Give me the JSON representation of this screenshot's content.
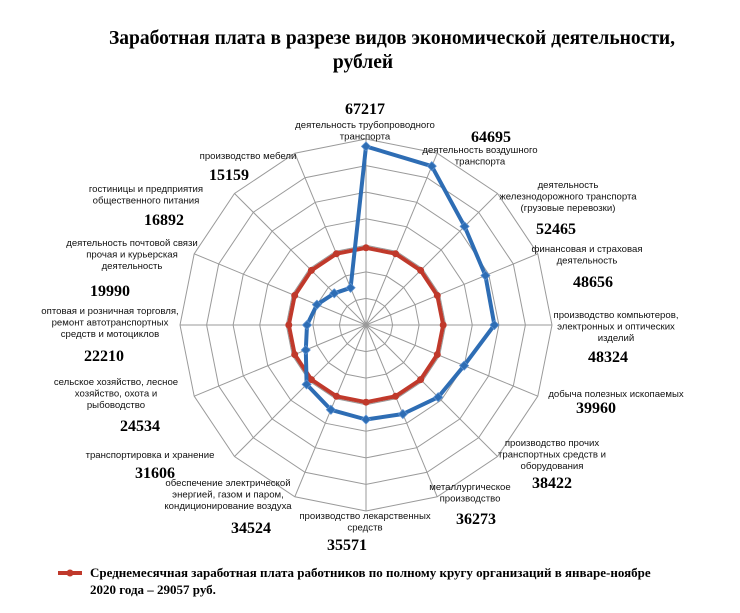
{
  "chart_data": {
    "type": "radar",
    "title": [
      "Заработная плата в разрезе видов экономической деятельности,",
      "рублей"
    ],
    "categories": [
      "деятельность трубопроводного транспорта",
      "деятельность воздушного транспорта",
      "деятельность железнодорожного транспорта (грузовые перевозки)",
      "финансовая и страховая деятельность",
      "производство компьютеров, электронных и оптических изделий",
      "добыча полезных ископаемых",
      "производство прочих транспортных средств и оборудования",
      "металлургическое производство",
      "производство лекарственных средств",
      "обеспечение электрической энергией, газом и паром, кондиционирование воздуха",
      "транспортировка и хранение",
      "сельское хозяйство, лесное хозяйство, охота и рыбоводство",
      "оптовая и розничная торговля, ремонт автотранспортных средств и мотоциклов",
      "деятельность почтовой связи прочая и курьерская деятельность",
      "гостиницы и предприятия общественного питания",
      "производство мебели"
    ],
    "category_lines": [
      [
        "деятельность трубопроводного",
        "транспорта"
      ],
      [
        "деятельность воздушного",
        "транспорта"
      ],
      [
        "деятельность",
        "железнодорожного транспорта",
        "(грузовые перевозки)"
      ],
      [
        "финансовая и страховая",
        "деятельность"
      ],
      [
        "производство компьютеров,",
        "электронных и оптических",
        "изделий"
      ],
      [
        "добыча полезных ископаемых"
      ],
      [
        "производство прочих",
        "транспортных средств и",
        "оборудования"
      ],
      [
        "металлургическое",
        "производство"
      ],
      [
        "производство лекарственных",
        "средств"
      ],
      [
        "обеспечение электрической",
        "энергией, газом и паром,",
        "кондиционирование воздуха"
      ],
      [
        "транспортировка и хранение"
      ],
      [
        "сельское хозяйство, лесное",
        "хозяйство, охота и",
        "рыбоводство"
      ],
      [
        "оптовая и розничная торговля,",
        "ремонт автотранспортных",
        "средств и мотоциклов"
      ],
      [
        "деятельность почтовой связи",
        "прочая и курьерская",
        "деятельность"
      ],
      [
        "гостиницы и предприятия",
        "общественного питания"
      ],
      [
        "производство мебели"
      ]
    ],
    "value_labels": [
      "67217",
      "64695",
      "52465",
      "48656",
      "48324",
      "39960",
      "38422",
      "36273",
      "35571",
      "34524",
      "31606",
      "24534",
      "22210",
      "19990",
      "16892",
      "15159"
    ],
    "series": [
      {
        "values": [
          67217,
          64695,
          52465,
          48656,
          48324,
          39960,
          38422,
          36273,
          35571,
          34524,
          31606,
          24534,
          22210,
          19990,
          16892,
          15159
        ],
        "color": "#2E6DB4",
        "marker": "diamond"
      },
      {
        "name": "Среднемесячная заработная плата работников по полному кругу организаций в январе-ноябре 2020 года – 29057 руб.",
        "legend_lines": [
          "Среднемесячная заработная плата работников по полному кругу организаций в январе-ноябре",
          "2020 года – 29057 руб."
        ],
        "values": [
          29057,
          29057,
          29057,
          29057,
          29057,
          29057,
          29057,
          29057,
          29057,
          29057,
          29057,
          29057,
          29057,
          29057,
          29057,
          29057
        ],
        "color": "#C0392B",
        "marker": "circle"
      }
    ],
    "r_range": [
      0,
      70000
    ],
    "grid_rings": 7,
    "axis_labels_shown": false,
    "legend_position": "bottom",
    "grid_color": "#9a9a9a"
  }
}
